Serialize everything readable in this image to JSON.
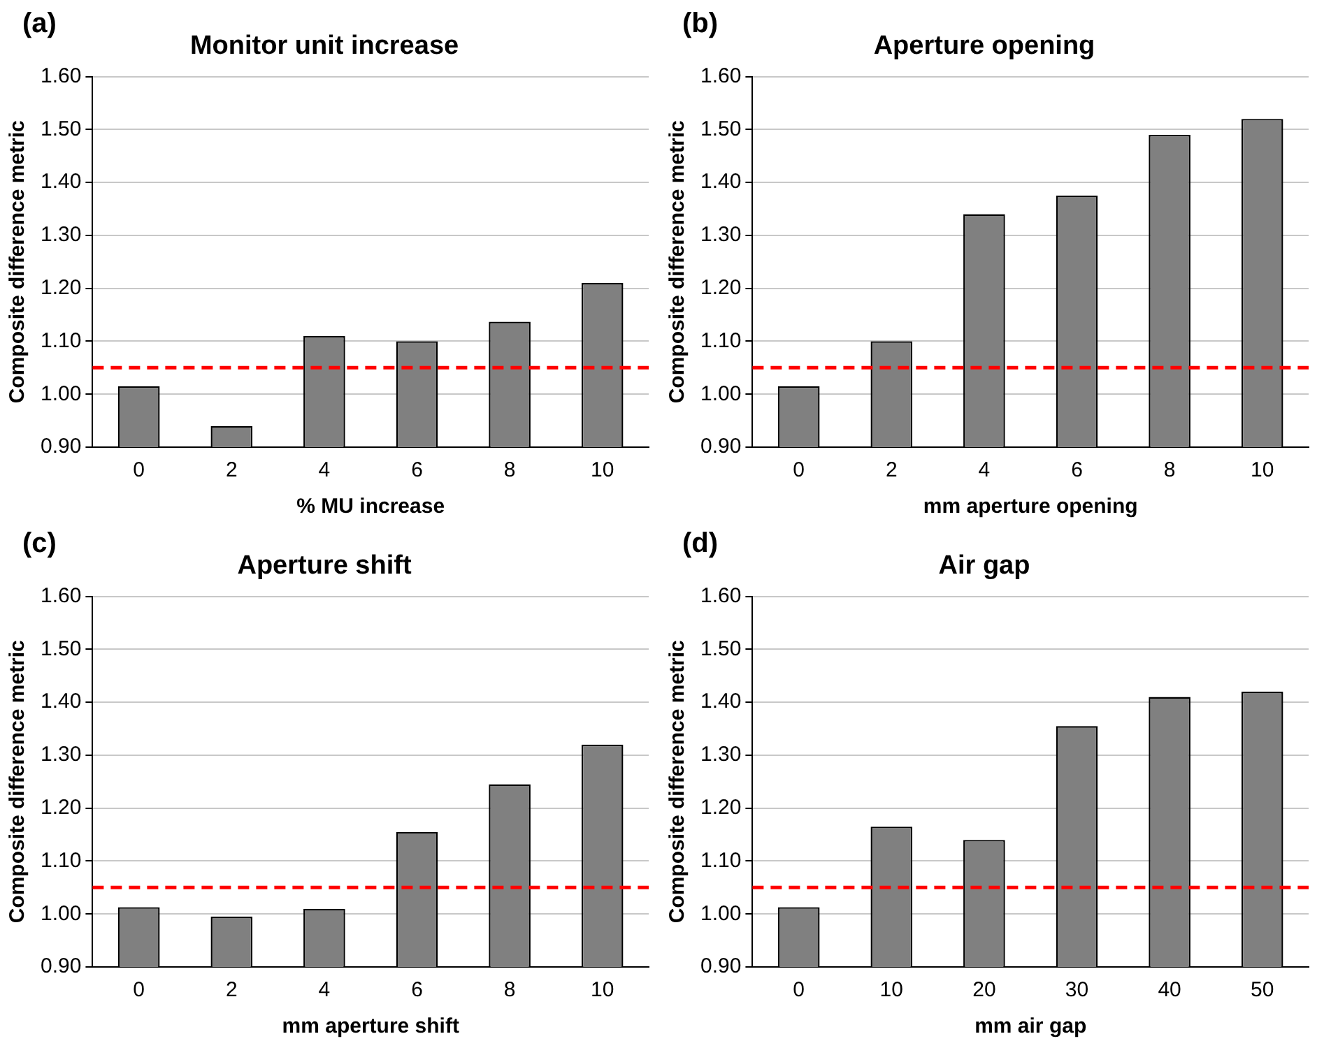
{
  "chart_data": [
    {
      "type": "bar",
      "title": "Monitor unit increase",
      "xlabel": "% MU increase",
      "ylabel": "Composite difference metric",
      "categories": [
        "0",
        "2",
        "4",
        "6",
        "8",
        "10"
      ],
      "values": [
        1.015,
        0.94,
        1.11,
        1.1,
        1.137,
        1.21
      ],
      "color": "#808080",
      "ylim": [
        0.9,
        1.6
      ],
      "yticks": [
        {
          "value": 0.9,
          "label": "0.90"
        },
        {
          "value": 1.0,
          "label": "1.00"
        },
        {
          "value": 1.1,
          "label": "1.10"
        },
        {
          "value": 1.2,
          "label": "1.20"
        },
        {
          "value": 1.3,
          "label": "1.30"
        },
        {
          "value": 1.4,
          "label": "1.40"
        },
        {
          "value": 1.5,
          "label": "1.50"
        },
        {
          "value": 1.6,
          "label": "1.60"
        }
      ],
      "grid": "y",
      "legend": false,
      "ref_lines": [
        {
          "axis": "y",
          "value": 1.05,
          "color": "#ff0000",
          "line_style": "dashed"
        }
      ],
      "annotations": [
        "(a)"
      ]
    },
    {
      "type": "bar",
      "title": "Aperture opening",
      "xlabel": "mm aperture opening",
      "ylabel": "Composite difference metric",
      "categories": [
        "0",
        "2",
        "4",
        "6",
        "8",
        "10"
      ],
      "values": [
        1.015,
        1.1,
        1.34,
        1.375,
        1.49,
        1.52
      ],
      "color": "#808080",
      "ylim": [
        0.9,
        1.6
      ],
      "yticks": [
        {
          "value": 0.9,
          "label": "0.90"
        },
        {
          "value": 1.0,
          "label": "1.00"
        },
        {
          "value": 1.1,
          "label": "1.10"
        },
        {
          "value": 1.2,
          "label": "1.20"
        },
        {
          "value": 1.3,
          "label": "1.30"
        },
        {
          "value": 1.4,
          "label": "1.40"
        },
        {
          "value": 1.5,
          "label": "1.50"
        },
        {
          "value": 1.6,
          "label": "1.60"
        }
      ],
      "grid": "y",
      "legend": false,
      "ref_lines": [
        {
          "axis": "y",
          "value": 1.05,
          "color": "#ff0000",
          "line_style": "dashed"
        }
      ],
      "annotations": [
        "(b)"
      ]
    },
    {
      "type": "bar",
      "title": "Aperture shift",
      "xlabel": "mm aperture shift",
      "ylabel": "Composite difference metric",
      "categories": [
        "0",
        "2",
        "4",
        "6",
        "8",
        "10"
      ],
      "values": [
        1.013,
        0.995,
        1.01,
        1.155,
        1.245,
        1.32
      ],
      "color": "#808080",
      "ylim": [
        0.9,
        1.6
      ],
      "yticks": [
        {
          "value": 0.9,
          "label": "0.90"
        },
        {
          "value": 1.0,
          "label": "1.00"
        },
        {
          "value": 1.1,
          "label": "1.10"
        },
        {
          "value": 1.2,
          "label": "1.20"
        },
        {
          "value": 1.3,
          "label": "1.30"
        },
        {
          "value": 1.4,
          "label": "1.40"
        },
        {
          "value": 1.5,
          "label": "1.50"
        },
        {
          "value": 1.6,
          "label": "1.60"
        }
      ],
      "grid": "y",
      "legend": false,
      "ref_lines": [
        {
          "axis": "y",
          "value": 1.05,
          "color": "#ff0000",
          "line_style": "dashed"
        }
      ],
      "annotations": [
        "(c)"
      ]
    },
    {
      "type": "bar",
      "title": "Air gap",
      "xlabel": "mm air gap",
      "ylabel": "Composite difference metric",
      "categories": [
        "0",
        "10",
        "20",
        "30",
        "40",
        "50"
      ],
      "values": [
        1.013,
        1.165,
        1.14,
        1.355,
        1.41,
        1.42
      ],
      "color": "#808080",
      "ylim": [
        0.9,
        1.6
      ],
      "yticks": [
        {
          "value": 0.9,
          "label": "0.90"
        },
        {
          "value": 1.0,
          "label": "1.00"
        },
        {
          "value": 1.1,
          "label": "1.10"
        },
        {
          "value": 1.2,
          "label": "1.20"
        },
        {
          "value": 1.3,
          "label": "1.30"
        },
        {
          "value": 1.4,
          "label": "1.40"
        },
        {
          "value": 1.5,
          "label": "1.50"
        },
        {
          "value": 1.6,
          "label": "1.60"
        }
      ],
      "grid": "y",
      "legend": false,
      "ref_lines": [
        {
          "axis": "y",
          "value": 1.05,
          "color": "#ff0000",
          "line_style": "dashed"
        }
      ],
      "annotations": [
        "(d)"
      ]
    }
  ]
}
